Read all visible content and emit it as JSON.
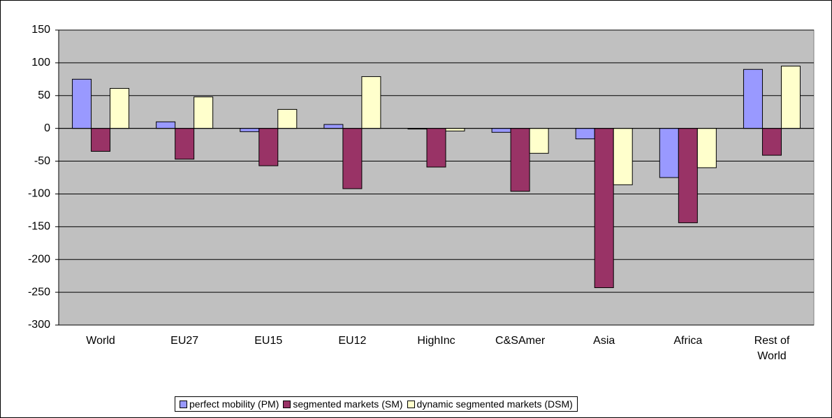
{
  "chart_data": {
    "type": "bar",
    "categories": [
      "World",
      "EU27",
      "EU15",
      "EU12",
      "HighInc",
      "C&SAmer",
      "Asia",
      "Africa",
      "Rest of World"
    ],
    "series": [
      {
        "name": "perfect mobility (PM)",
        "color": "#9999ff",
        "values": [
          75,
          10,
          -5,
          6,
          -1,
          -6,
          -16,
          -75,
          90
        ]
      },
      {
        "name": "segmented markets (SM)",
        "color": "#993366",
        "values": [
          -35,
          -47,
          -57,
          -92,
          -59,
          -96,
          -243,
          -144,
          -41
        ]
      },
      {
        "name": "dynamic segmented markets (DSM)",
        "color": "#ffffcc",
        "values": [
          61,
          48,
          29,
          79,
          -4,
          -38,
          -86,
          -60,
          95
        ]
      }
    ],
    "ylim": [
      -300,
      150
    ],
    "yticks": [
      -300,
      -250,
      -200,
      -150,
      -100,
      -50,
      0,
      50,
      100,
      150
    ],
    "grid": true,
    "plot_background": "#c0c0c0",
    "legend": "bottom"
  }
}
